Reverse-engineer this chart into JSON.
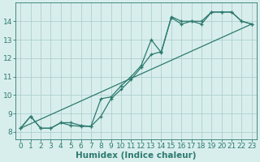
{
  "bg_color": "#d8eeed",
  "line_color": "#2d7a6e",
  "grid_color": "#aecfcf",
  "xlabel": "Humidex (Indice chaleur)",
  "xlabel_fontsize": 7.5,
  "tick_fontsize": 6.5,
  "xlim": [
    -0.5,
    23.5
  ],
  "ylim": [
    7.6,
    15.0
  ],
  "xticks": [
    0,
    1,
    2,
    3,
    4,
    5,
    6,
    7,
    8,
    9,
    10,
    11,
    12,
    13,
    14,
    15,
    16,
    17,
    18,
    19,
    20,
    21,
    22,
    23
  ],
  "yticks": [
    8,
    9,
    10,
    11,
    12,
    13,
    14
  ],
  "line1_x": [
    0,
    1,
    2,
    3,
    4,
    5,
    6,
    7,
    8,
    9,
    10,
    11,
    12,
    13,
    14,
    15,
    16,
    17,
    18,
    19,
    20,
    21,
    22,
    23
  ],
  "line1_y": [
    8.2,
    8.85,
    8.2,
    8.2,
    8.5,
    8.35,
    8.3,
    8.3,
    8.85,
    9.8,
    10.3,
    10.85,
    11.5,
    12.2,
    12.35,
    14.2,
    13.85,
    14.0,
    13.85,
    14.5,
    14.5,
    14.5,
    14.0,
    13.85
  ],
  "line2_x": [
    0,
    1,
    2,
    3,
    4,
    5,
    6,
    7,
    8,
    9,
    10,
    11,
    12,
    13,
    14,
    15,
    16,
    17,
    18,
    19,
    20,
    21,
    22,
    23
  ],
  "line2_y": [
    8.2,
    8.85,
    8.2,
    8.2,
    8.5,
    8.5,
    8.35,
    8.3,
    9.8,
    9.9,
    10.5,
    11.0,
    11.6,
    13.0,
    12.3,
    14.25,
    14.0,
    14.0,
    14.0,
    14.5,
    14.5,
    14.5,
    14.0,
    13.85
  ],
  "line3_x": [
    0,
    23
  ],
  "line3_y": [
    8.2,
    13.85
  ]
}
